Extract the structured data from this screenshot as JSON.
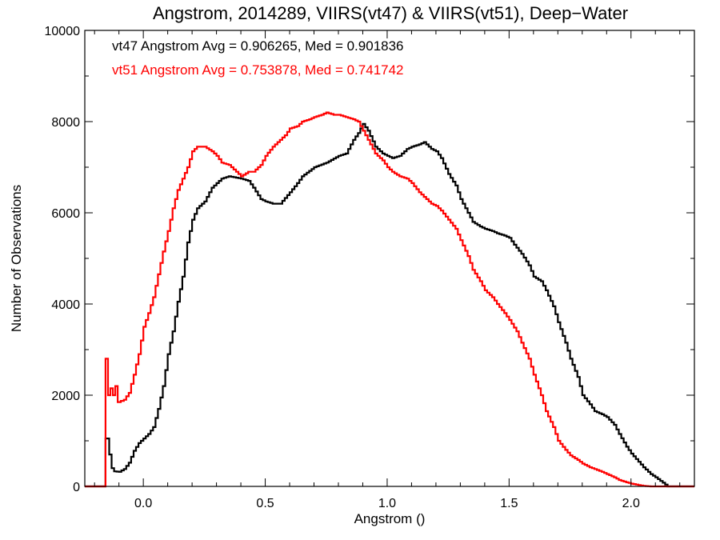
{
  "chart_data": {
    "type": "line",
    "style": "step-histogram",
    "title": "Angstrom, 2014289, VIIRS(vt47) & VIIRS(vt51), Deep−Water",
    "xlabel": "Angstrom ()",
    "ylabel": "Number of Observations",
    "xlim": [
      -0.24,
      2.26
    ],
    "ylim": [
      0,
      10000
    ],
    "x_ticks": [
      0.0,
      0.5,
      1.0,
      1.5,
      2.0
    ],
    "x_tick_labels": [
      "0.0",
      "0.5",
      "1.0",
      "1.5",
      "2.0"
    ],
    "y_ticks": [
      0,
      2000,
      4000,
      6000,
      8000,
      10000
    ],
    "y_tick_labels": [
      "0",
      "2000",
      "4000",
      "6000",
      "8000",
      "10000"
    ],
    "grid": false,
    "annotations": [
      {
        "text": "vt47 Angstrom Avg = 0.906265, Med = 0.901836",
        "color": "#000000"
      },
      {
        "text": "vt51 Angstrom Avg = 0.753878, Med = 0.741742",
        "color": "#ff0000"
      }
    ],
    "bin_width": 0.01,
    "series": [
      {
        "color": "#000000",
        "points": [
          [
            -0.24,
            0
          ],
          [
            -0.16,
            0
          ],
          [
            -0.155,
            1050
          ],
          [
            -0.14,
            700
          ],
          [
            -0.13,
            400
          ],
          [
            -0.12,
            330
          ],
          [
            -0.1,
            320
          ],
          [
            -0.08,
            380
          ],
          [
            -0.06,
            520
          ],
          [
            -0.04,
            780
          ],
          [
            -0.02,
            950
          ],
          [
            0.0,
            1050
          ],
          [
            0.02,
            1150
          ],
          [
            0.04,
            1300
          ],
          [
            0.06,
            1700
          ],
          [
            0.08,
            2200
          ],
          [
            0.1,
            2900
          ],
          [
            0.12,
            3400
          ],
          [
            0.14,
            4050
          ],
          [
            0.16,
            4600
          ],
          [
            0.18,
            5350
          ],
          [
            0.2,
            5850
          ],
          [
            0.22,
            6100
          ],
          [
            0.25,
            6250
          ],
          [
            0.28,
            6550
          ],
          [
            0.3,
            6650
          ],
          [
            0.32,
            6750
          ],
          [
            0.35,
            6800
          ],
          [
            0.38,
            6770
          ],
          [
            0.4,
            6750
          ],
          [
            0.43,
            6700
          ],
          [
            0.45,
            6550
          ],
          [
            0.48,
            6300
          ],
          [
            0.5,
            6250
          ],
          [
            0.53,
            6200
          ],
          [
            0.56,
            6200
          ],
          [
            0.6,
            6450
          ],
          [
            0.63,
            6650
          ],
          [
            0.65,
            6800
          ],
          [
            0.7,
            7000
          ],
          [
            0.75,
            7100
          ],
          [
            0.8,
            7250
          ],
          [
            0.83,
            7300
          ],
          [
            0.86,
            7600
          ],
          [
            0.88,
            7750
          ],
          [
            0.9,
            7950
          ],
          [
            0.92,
            7800
          ],
          [
            0.95,
            7450
          ],
          [
            0.98,
            7300
          ],
          [
            1.0,
            7250
          ],
          [
            1.02,
            7200
          ],
          [
            1.05,
            7250
          ],
          [
            1.08,
            7400
          ],
          [
            1.1,
            7450
          ],
          [
            1.13,
            7500
          ],
          [
            1.15,
            7550
          ],
          [
            1.18,
            7400
          ],
          [
            1.2,
            7350
          ],
          [
            1.22,
            7200
          ],
          [
            1.25,
            6850
          ],
          [
            1.28,
            6600
          ],
          [
            1.3,
            6300
          ],
          [
            1.33,
            6000
          ],
          [
            1.35,
            5800
          ],
          [
            1.38,
            5700
          ],
          [
            1.4,
            5650
          ],
          [
            1.43,
            5600
          ],
          [
            1.45,
            5550
          ],
          [
            1.48,
            5500
          ],
          [
            1.5,
            5450
          ],
          [
            1.52,
            5300
          ],
          [
            1.55,
            5100
          ],
          [
            1.58,
            4850
          ],
          [
            1.6,
            4600
          ],
          [
            1.63,
            4500
          ],
          [
            1.65,
            4300
          ],
          [
            1.68,
            3950
          ],
          [
            1.7,
            3600
          ],
          [
            1.73,
            3150
          ],
          [
            1.75,
            2800
          ],
          [
            1.78,
            2400
          ],
          [
            1.8,
            2000
          ],
          [
            1.83,
            1800
          ],
          [
            1.85,
            1650
          ],
          [
            1.88,
            1580
          ],
          [
            1.9,
            1520
          ],
          [
            1.93,
            1350
          ],
          [
            1.95,
            1150
          ],
          [
            1.98,
            870
          ],
          [
            2.0,
            720
          ],
          [
            2.02,
            600
          ],
          [
            2.05,
            420
          ],
          [
            2.08,
            270
          ],
          [
            2.1,
            200
          ],
          [
            2.12,
            120
          ],
          [
            2.14,
            40
          ],
          [
            2.15,
            0
          ],
          [
            2.26,
            0
          ]
        ]
      },
      {
        "color": "#ff0000",
        "points": [
          [
            -0.24,
            0
          ],
          [
            -0.16,
            0
          ],
          [
            -0.155,
            2800
          ],
          [
            -0.145,
            2000
          ],
          [
            -0.135,
            2150
          ],
          [
            -0.125,
            2000
          ],
          [
            -0.115,
            2200
          ],
          [
            -0.105,
            1850
          ],
          [
            -0.08,
            1900
          ],
          [
            -0.06,
            2050
          ],
          [
            -0.04,
            2450
          ],
          [
            -0.02,
            2900
          ],
          [
            0.0,
            3500
          ],
          [
            0.02,
            3800
          ],
          [
            0.04,
            4150
          ],
          [
            0.06,
            4650
          ],
          [
            0.08,
            5150
          ],
          [
            0.1,
            5600
          ],
          [
            0.12,
            6100
          ],
          [
            0.14,
            6500
          ],
          [
            0.16,
            6750
          ],
          [
            0.18,
            7000
          ],
          [
            0.2,
            7350
          ],
          [
            0.22,
            7450
          ],
          [
            0.25,
            7450
          ],
          [
            0.28,
            7350
          ],
          [
            0.3,
            7250
          ],
          [
            0.32,
            7100
          ],
          [
            0.35,
            7050
          ],
          [
            0.38,
            6900
          ],
          [
            0.4,
            6800
          ],
          [
            0.43,
            6900
          ],
          [
            0.45,
            6900
          ],
          [
            0.48,
            7050
          ],
          [
            0.5,
            7250
          ],
          [
            0.53,
            7450
          ],
          [
            0.55,
            7550
          ],
          [
            0.58,
            7700
          ],
          [
            0.6,
            7850
          ],
          [
            0.63,
            7900
          ],
          [
            0.65,
            8000
          ],
          [
            0.68,
            8050
          ],
          [
            0.7,
            8100
          ],
          [
            0.73,
            8150
          ],
          [
            0.75,
            8200
          ],
          [
            0.78,
            8150
          ],
          [
            0.8,
            8150
          ],
          [
            0.83,
            8100
          ],
          [
            0.86,
            8050
          ],
          [
            0.88,
            8000
          ],
          [
            0.9,
            7800
          ],
          [
            0.92,
            7600
          ],
          [
            0.95,
            7300
          ],
          [
            0.98,
            7150
          ],
          [
            1.0,
            7000
          ],
          [
            1.02,
            6900
          ],
          [
            1.05,
            6800
          ],
          [
            1.08,
            6750
          ],
          [
            1.1,
            6650
          ],
          [
            1.13,
            6450
          ],
          [
            1.15,
            6350
          ],
          [
            1.18,
            6200
          ],
          [
            1.2,
            6150
          ],
          [
            1.22,
            6050
          ],
          [
            1.25,
            5850
          ],
          [
            1.28,
            5650
          ],
          [
            1.3,
            5400
          ],
          [
            1.33,
            5050
          ],
          [
            1.35,
            4750
          ],
          [
            1.38,
            4500
          ],
          [
            1.4,
            4300
          ],
          [
            1.43,
            4150
          ],
          [
            1.45,
            4000
          ],
          [
            1.48,
            3800
          ],
          [
            1.5,
            3650
          ],
          [
            1.53,
            3400
          ],
          [
            1.55,
            3150
          ],
          [
            1.58,
            2800
          ],
          [
            1.6,
            2450
          ],
          [
            1.63,
            2000
          ],
          [
            1.65,
            1650
          ],
          [
            1.68,
            1300
          ],
          [
            1.7,
            1000
          ],
          [
            1.73,
            800
          ],
          [
            1.75,
            680
          ],
          [
            1.78,
            580
          ],
          [
            1.8,
            500
          ],
          [
            1.83,
            420
          ],
          [
            1.85,
            380
          ],
          [
            1.88,
            320
          ],
          [
            1.9,
            270
          ],
          [
            1.93,
            200
          ],
          [
            1.95,
            140
          ],
          [
            1.98,
            90
          ],
          [
            2.0,
            60
          ],
          [
            2.03,
            30
          ],
          [
            2.05,
            10
          ],
          [
            2.08,
            0
          ],
          [
            2.26,
            0
          ]
        ]
      }
    ]
  }
}
